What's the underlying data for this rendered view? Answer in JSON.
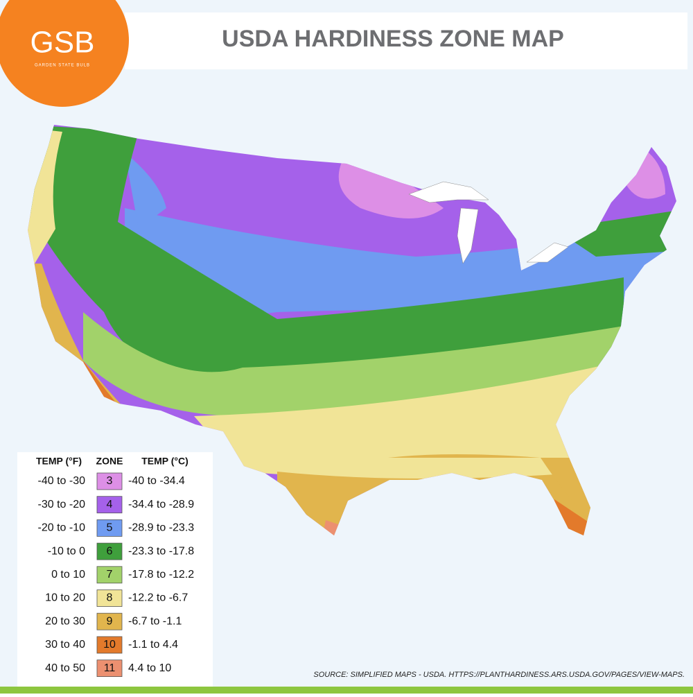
{
  "header": {
    "logo": "GSB",
    "logo_sub": "GARDEN STATE BULB",
    "title": "USDA HARDINESS ZONE MAP"
  },
  "legend": {
    "headers": [
      "TEMP (°F)",
      "ZONE",
      "TEMP (°C)"
    ],
    "rows": [
      {
        "f": "-40 to -30",
        "zone": "3",
        "c": "-40 to -34.4",
        "color": "#dd8fe6"
      },
      {
        "f": "-30 to -20",
        "zone": "4",
        "c": "-34.4 to -28.9",
        "color": "#a561ea"
      },
      {
        "f": "-20 to -10",
        "zone": "5",
        "c": "-28.9 to -23.3",
        "color": "#6f9bf1"
      },
      {
        "f": "-10 to 0",
        "zone": "6",
        "c": "-23.3 to -17.8",
        "color": "#3f9f3c"
      },
      {
        "f": "0 to 10",
        "zone": "7",
        "c": "-17.8 to -12.2",
        "color": "#a2d26a"
      },
      {
        "f": "10 to 20",
        "zone": "8",
        "c": "-12.2 to -6.7",
        "color": "#f1e497"
      },
      {
        "f": "20 to 30",
        "zone": "9",
        "c": "-6.7 to -1.1",
        "color": "#e1b54d"
      },
      {
        "f": "30 to 40",
        "zone": "10",
        "c": "-1.1 to 4.4",
        "color": "#e37a2b"
      },
      {
        "f": "40 to 50",
        "zone": "11",
        "c": "4.4 to 10",
        "color": "#ec9070"
      }
    ]
  },
  "source": "SOURCE: SIMPLIFIED MAPS - USDA. HTTPS://PLANTHARDINESS.ARS.USDA.GOV/PAGES/VIEW-MAPS."
}
